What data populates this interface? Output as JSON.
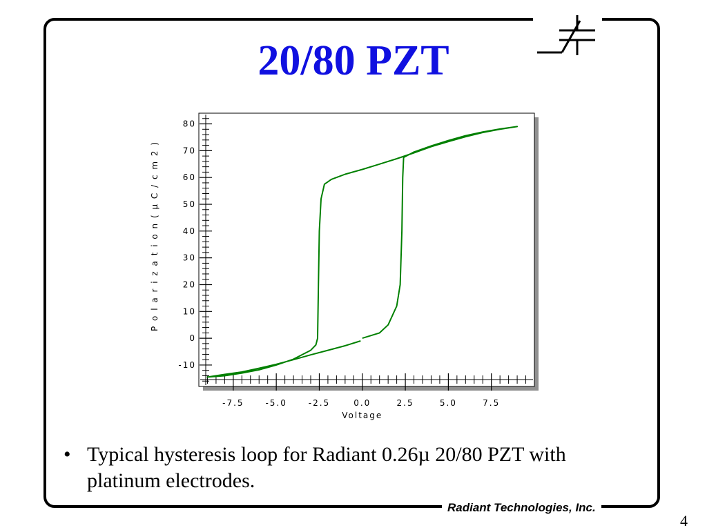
{
  "slide": {
    "title": "20/80 PZT",
    "title_color": "#1010e0",
    "bullet_marker": "•",
    "bullet_text": "Typical hysteresis loop for Radiant 0.26µ 20/80 PZT with platinum electrodes.",
    "footer_company": "Radiant Technologies, Inc.",
    "page_number": "4",
    "logo_icon": "capacitor-symbol-icon"
  },
  "chart_data": {
    "type": "line",
    "title": "",
    "xlabel": "Voltage",
    "ylabel": "P o l a r i z a t i o n   ( µ C / c m 2 )",
    "xlim": [
      -9.5,
      10
    ],
    "ylim": [
      -18,
      84
    ],
    "x_ticks": [
      -7.5,
      -5.0,
      -2.5,
      0.0,
      2.5,
      5.0,
      7.5
    ],
    "x_tick_labels": [
      "-7.5",
      "-5.0",
      "-2.5",
      "0.0",
      "2.5",
      "5.0",
      "7.5"
    ],
    "y_ticks": [
      -10,
      0,
      10,
      20,
      30,
      40,
      50,
      60,
      70,
      80
    ],
    "y_tick_labels": [
      "-10",
      "0",
      "10",
      "20",
      "30",
      "40",
      "50",
      "60",
      "70",
      "80"
    ],
    "grid": false,
    "series": [
      {
        "color": "#008000",
        "x": [
          0.0,
          1.0,
          1.5,
          2.0,
          2.2,
          2.3,
          2.35,
          2.4,
          3.0,
          4.0,
          5.0,
          6.0,
          7.0,
          8.0,
          9.0,
          8.0,
          7.0,
          6.0,
          5.0,
          4.0,
          3.0,
          2.0,
          1.0,
          0.0,
          -1.0,
          -1.8,
          -2.2,
          -2.4,
          -2.5,
          -2.55,
          -2.6,
          -2.7,
          -3.0,
          -4.0,
          -5.0,
          -6.0,
          -7.0,
          -8.0,
          -9.0,
          -8.0,
          -7.0,
          -6.0,
          -5.0,
          -4.0,
          -3.0,
          -2.0,
          -1.0,
          -0.1
        ],
        "y": [
          0.0,
          2.0,
          5.0,
          12.0,
          20.0,
          40.0,
          60.0,
          67.5,
          69.5,
          71.8,
          73.8,
          75.6,
          77.0,
          78.1,
          79.0,
          78.0,
          76.8,
          75.2,
          73.4,
          71.5,
          69.2,
          67.0,
          65.0,
          63.0,
          61.2,
          59.3,
          57.5,
          52.0,
          40.0,
          20.0,
          0.0,
          -2.5,
          -4.5,
          -7.8,
          -10.0,
          -11.8,
          -13.0,
          -14.0,
          -14.5,
          -13.5,
          -12.6,
          -11.2,
          -9.7,
          -8.0,
          -6.2,
          -4.5,
          -2.8,
          -1.0
        ]
      }
    ]
  }
}
